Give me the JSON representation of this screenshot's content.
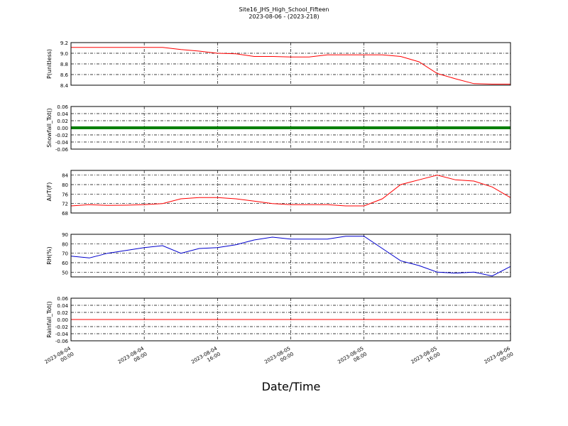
{
  "chart_data": [
    {
      "type": "line",
      "title": "Site16_JHS_High_School_Fifteen",
      "subtitle": "2023-08-06 - (2023-218)",
      "ylabel": "P(unitless)",
      "color": "#ff0000",
      "linewidth": 1,
      "x": [
        "2023-08-04 00:00",
        "2023-08-04 02:00",
        "2023-08-04 04:00",
        "2023-08-04 06:00",
        "2023-08-04 08:00",
        "2023-08-04 10:00",
        "2023-08-04 12:00",
        "2023-08-04 14:00",
        "2023-08-04 16:00",
        "2023-08-04 18:00",
        "2023-08-04 20:00",
        "2023-08-04 22:00",
        "2023-08-05 00:00",
        "2023-08-05 02:00",
        "2023-08-05 04:00",
        "2023-08-05 06:00",
        "2023-08-05 08:00",
        "2023-08-05 10:00",
        "2023-08-05 12:00",
        "2023-08-05 14:00",
        "2023-08-05 16:00",
        "2023-08-05 18:00",
        "2023-08-05 20:00",
        "2023-08-05 22:00",
        "2023-08-06 00:00"
      ],
      "values": [
        9.11,
        9.11,
        9.11,
        9.11,
        9.11,
        9.11,
        9.07,
        9.04,
        9.0,
        8.99,
        8.94,
        8.94,
        8.93,
        8.93,
        8.97,
        8.97,
        8.97,
        8.97,
        8.94,
        8.84,
        8.62,
        8.52,
        8.43,
        8.42,
        8.42
      ],
      "xlim": [
        "2023-08-04 00:00",
        "2023-08-06 00:00"
      ],
      "ylim": [
        8.4,
        9.2
      ],
      "yticks": [
        8.4,
        8.6,
        8.8,
        {
          "value": 9,
          "label": "9.0"
        },
        9.2
      ],
      "grid": true
    },
    {
      "type": "line",
      "ylabel": "Snowfall_Tot()",
      "color": "#007f00",
      "linewidth": 4,
      "x": [
        "2023-08-04 00:00",
        "2023-08-04 02:00",
        "2023-08-04 04:00",
        "2023-08-04 06:00",
        "2023-08-04 08:00",
        "2023-08-04 10:00",
        "2023-08-04 12:00",
        "2023-08-04 14:00",
        "2023-08-04 16:00",
        "2023-08-04 18:00",
        "2023-08-04 20:00",
        "2023-08-04 22:00",
        "2023-08-05 00:00",
        "2023-08-05 02:00",
        "2023-08-05 04:00",
        "2023-08-05 06:00",
        "2023-08-05 08:00",
        "2023-08-05 10:00",
        "2023-08-05 12:00",
        "2023-08-05 14:00",
        "2023-08-05 16:00",
        "2023-08-05 18:00",
        "2023-08-05 20:00",
        "2023-08-05 22:00",
        "2023-08-06 00:00"
      ],
      "values": [
        0,
        0,
        0,
        0,
        0,
        0,
        0,
        0,
        0,
        0,
        0,
        0,
        0,
        0,
        0,
        0,
        0,
        0,
        0,
        0,
        0,
        0,
        0,
        0,
        0
      ],
      "xlim": [
        "2023-08-04 00:00",
        "2023-08-06 00:00"
      ],
      "ylim": [
        -0.06,
        0.06
      ],
      "yticks": [
        -0.06,
        -0.04,
        -0.02,
        {
          "value": 0,
          "label": "0.00"
        },
        0.02,
        0.04,
        0.06
      ],
      "grid": true
    },
    {
      "type": "line",
      "ylabel": "AirT(F)",
      "color": "#ff0000",
      "linewidth": 1,
      "x": [
        "2023-08-04 00:00",
        "2023-08-04 02:00",
        "2023-08-04 04:00",
        "2023-08-04 06:00",
        "2023-08-04 08:00",
        "2023-08-04 10:00",
        "2023-08-04 12:00",
        "2023-08-04 14:00",
        "2023-08-04 16:00",
        "2023-08-04 18:00",
        "2023-08-04 20:00",
        "2023-08-04 22:00",
        "2023-08-05 00:00",
        "2023-08-05 02:00",
        "2023-08-05 04:00",
        "2023-08-05 06:00",
        "2023-08-05 08:00",
        "2023-08-05 10:00",
        "2023-08-05 12:00",
        "2023-08-05 14:00",
        "2023-08-05 16:00",
        "2023-08-05 18:00",
        "2023-08-05 20:00",
        "2023-08-05 22:00",
        "2023-08-06 00:00"
      ],
      "values": [
        71,
        71.5,
        71.2,
        71.3,
        71.5,
        72,
        74,
        74.5,
        74.5,
        74,
        73,
        72,
        71.5,
        71.5,
        71.5,
        71,
        71,
        74,
        80,
        82,
        84,
        82,
        81.5,
        79,
        74.5
      ],
      "xlim": [
        "2023-08-04 00:00",
        "2023-08-06 00:00"
      ],
      "ylim": [
        68,
        86
      ],
      "yticks": [
        68,
        72,
        76,
        80,
        84
      ],
      "grid": true
    },
    {
      "type": "line",
      "ylabel": "RH(%)",
      "color": "#0000cc",
      "linewidth": 1,
      "x": [
        "2023-08-04 00:00",
        "2023-08-04 02:00",
        "2023-08-04 04:00",
        "2023-08-04 06:00",
        "2023-08-04 08:00",
        "2023-08-04 10:00",
        "2023-08-04 12:00",
        "2023-08-04 14:00",
        "2023-08-04 16:00",
        "2023-08-04 18:00",
        "2023-08-04 20:00",
        "2023-08-04 22:00",
        "2023-08-05 00:00",
        "2023-08-05 02:00",
        "2023-08-05 04:00",
        "2023-08-05 06:00",
        "2023-08-05 08:00",
        "2023-08-05 10:00",
        "2023-08-05 12:00",
        "2023-08-05 14:00",
        "2023-08-05 16:00",
        "2023-08-05 18:00",
        "2023-08-05 20:00",
        "2023-08-05 22:00",
        "2023-08-06 00:00"
      ],
      "values": [
        67,
        65,
        70,
        73,
        76,
        78,
        70,
        75,
        76,
        79,
        84,
        87,
        85,
        85,
        85,
        88,
        88,
        75,
        62,
        57,
        50,
        49,
        50,
        46,
        56
      ],
      "xlim": [
        "2023-08-04 00:00",
        "2023-08-06 00:00"
      ],
      "ylim": [
        45,
        90
      ],
      "yticks": [
        50,
        60,
        70,
        80,
        90
      ],
      "grid": true
    },
    {
      "type": "line",
      "ylabel": "Rainfall_Tot()",
      "color": "#ff0000",
      "linewidth": 1,
      "xlabel": "Date/Time",
      "x": [
        "2023-08-04 00:00",
        "2023-08-04 02:00",
        "2023-08-04 04:00",
        "2023-08-04 06:00",
        "2023-08-04 08:00",
        "2023-08-04 10:00",
        "2023-08-04 12:00",
        "2023-08-04 14:00",
        "2023-08-04 16:00",
        "2023-08-04 18:00",
        "2023-08-04 20:00",
        "2023-08-04 22:00",
        "2023-08-05 00:00",
        "2023-08-05 02:00",
        "2023-08-05 04:00",
        "2023-08-05 06:00",
        "2023-08-05 08:00",
        "2023-08-05 10:00",
        "2023-08-05 12:00",
        "2023-08-05 14:00",
        "2023-08-05 16:00",
        "2023-08-05 18:00",
        "2023-08-05 20:00",
        "2023-08-05 22:00",
        "2023-08-06 00:00"
      ],
      "values": [
        0,
        0,
        0,
        0,
        0,
        0,
        0,
        0,
        0,
        0,
        0,
        0,
        0,
        0,
        0,
        0,
        0,
        0,
        0,
        0,
        0,
        0,
        0,
        0,
        0
      ],
      "xlim": [
        "2023-08-04 00:00",
        "2023-08-06 00:00"
      ],
      "ylim": [
        -0.06,
        0.06
      ],
      "yticks": [
        -0.06,
        -0.04,
        -0.02,
        {
          "value": 0,
          "label": "0.00"
        },
        0.02,
        0.04,
        0.06
      ],
      "grid": true,
      "xticks": [
        "2023-08-04 00:00",
        "2023-08-04 08:00",
        "2023-08-04 16:00",
        "2023-08-05 00:00",
        "2023-08-05 08:00",
        "2023-08-05 16:00",
        "2023-08-06 00:00"
      ]
    }
  ]
}
